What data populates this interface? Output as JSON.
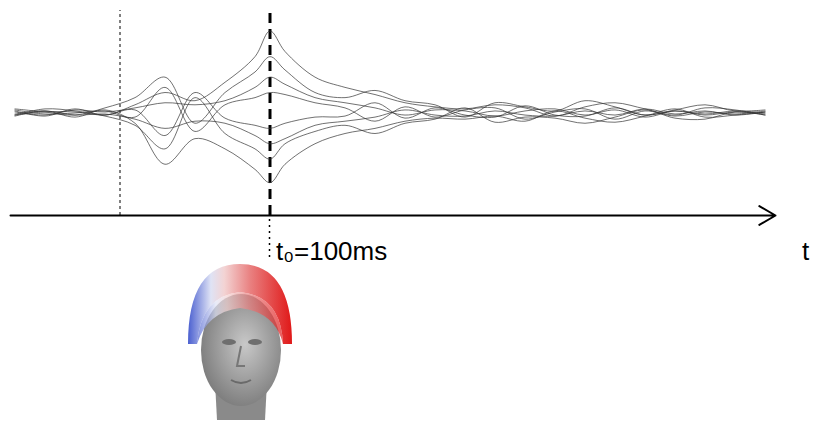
{
  "chart_data": {
    "type": "line",
    "x": [
      -70,
      -50,
      -30,
      -10,
      10,
      30,
      50,
      70,
      90,
      100,
      110,
      130,
      150,
      170,
      190,
      210,
      230,
      250,
      270,
      290,
      310,
      330,
      350,
      370,
      390,
      410,
      430
    ],
    "series": [
      {
        "color": "#333333",
        "values": [
          2,
          -3,
          4,
          -2,
          8,
          20,
          12,
          30,
          55,
          80,
          60,
          35,
          25,
          18,
          10,
          6,
          4,
          8,
          5,
          -3,
          6,
          10,
          4,
          -2,
          5,
          3,
          -2
        ]
      },
      {
        "color": "#333333",
        "values": [
          -3,
          2,
          -4,
          3,
          -10,
          -50,
          -25,
          -35,
          -55,
          -68,
          -50,
          -30,
          -20,
          -15,
          -8,
          -5,
          -6,
          -3,
          -8,
          2,
          -5,
          -9,
          -3,
          4,
          -4,
          -2,
          1
        ]
      },
      {
        "color": "#333333",
        "values": [
          4,
          1,
          -2,
          5,
          15,
          35,
          -10,
          20,
          40,
          55,
          42,
          20,
          15,
          22,
          12,
          8,
          -4,
          10,
          6,
          2,
          12,
          6,
          -2,
          3,
          8,
          2,
          3
        ]
      },
      {
        "color": "#333333",
        "values": [
          -2,
          4,
          2,
          -3,
          -12,
          -35,
          15,
          -20,
          -35,
          -45,
          -30,
          -18,
          -12,
          -20,
          -10,
          -6,
          5,
          -9,
          -4,
          -5,
          -10,
          -4,
          3,
          -5,
          -6,
          1,
          -2
        ]
      },
      {
        "color": "#333333",
        "values": [
          1,
          -2,
          3,
          1,
          5,
          10,
          8,
          12,
          25,
          35,
          28,
          15,
          10,
          5,
          -2,
          3,
          2,
          -3,
          2,
          4,
          -2,
          3,
          -4,
          2,
          -1,
          2,
          0
        ]
      },
      {
        "color": "#333333",
        "values": [
          -1,
          2,
          -2,
          -1,
          -6,
          -15,
          -8,
          -10,
          -22,
          -30,
          -25,
          -12,
          -8,
          -4,
          3,
          -2,
          -3,
          2,
          -2,
          -3,
          2,
          -2,
          4,
          -1,
          2,
          -2,
          1
        ]
      },
      {
        "color": "#333333",
        "values": [
          3,
          -1,
          0,
          2,
          -4,
          25,
          -18,
          8,
          15,
          20,
          18,
          10,
          5,
          -8,
          6,
          -4,
          3,
          5,
          -6,
          1,
          4,
          -6,
          2,
          -3,
          1,
          -1,
          2
        ]
      },
      {
        "color": "#333333",
        "values": [
          -2,
          1,
          1,
          -2,
          3,
          -22,
          20,
          -5,
          -12,
          -15,
          -10,
          -4,
          -3,
          10,
          -5,
          5,
          -2,
          -4,
          7,
          -2,
          -3,
          5,
          -2,
          2,
          -2,
          1,
          -1
        ]
      }
    ],
    "xlim": [
      -73,
      437
    ],
    "ylim": [
      -100,
      100
    ],
    "xticks": [],
    "yticks": [],
    "tick_labels": false,
    "x_label": "t",
    "annotations": [
      {
        "x": 0,
        "line_style": "dotted"
      },
      {
        "x": 100,
        "label": "t₀=100ms",
        "line_style": "dashed"
      }
    ]
  }
}
